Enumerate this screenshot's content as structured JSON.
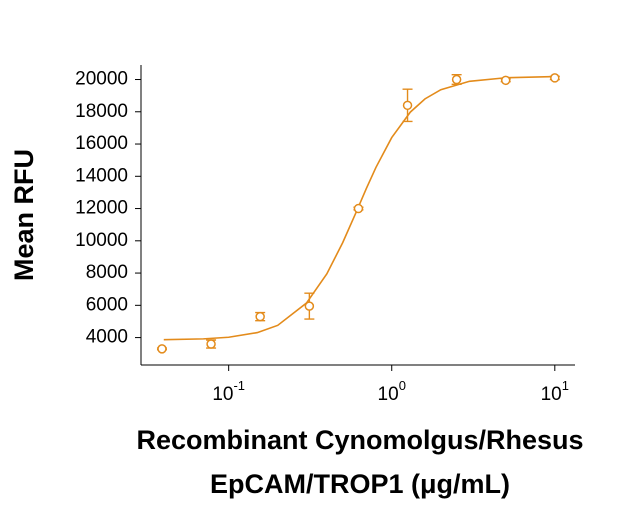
{
  "chart_data": {
    "type": "scatter",
    "xscale": "log",
    "color": "#e38b1b",
    "y_label": "Mean RFU",
    "x_label": [
      "Recombinant Cynomolgus/Rhesus",
      "EpCAM/TROP1 (μg/mL)"
    ],
    "x": [
      0.039,
      0.078,
      0.156,
      0.3125,
      0.625,
      1.25,
      2.5,
      5,
      10
    ],
    "values": [
      3300,
      3600,
      5300,
      5950,
      12000,
      18400,
      20000,
      19950,
      20100
    ],
    "errors": [
      50,
      250,
      250,
      800,
      80,
      1000,
      300,
      80,
      100
    ],
    "curve": {
      "x": [
        0.04,
        0.07,
        0.1,
        0.15,
        0.2,
        0.3,
        0.4,
        0.5,
        0.6,
        0.7,
        0.8,
        1,
        1.3,
        1.6,
        2,
        3,
        5,
        10
      ],
      "values": [
        3870,
        3920,
        4020,
        4310,
        4760,
        6140,
        7950,
        9880,
        11690,
        13260,
        14550,
        16400,
        17980,
        18800,
        19370,
        19890,
        20110,
        20180
      ]
    },
    "xlim": [
      0.029,
      13.3
    ],
    "ylim": [
      2300,
      20900
    ],
    "xticks": [
      {
        "value": 0.1,
        "label": "10",
        "exponent": "-1"
      },
      {
        "value": 1,
        "label": "10",
        "exponent": "0"
      },
      {
        "value": 10,
        "label": "10",
        "exponent": "1"
      }
    ],
    "yticks": [
      4000,
      6000,
      8000,
      10000,
      12000,
      14000,
      16000,
      18000,
      20000
    ]
  }
}
